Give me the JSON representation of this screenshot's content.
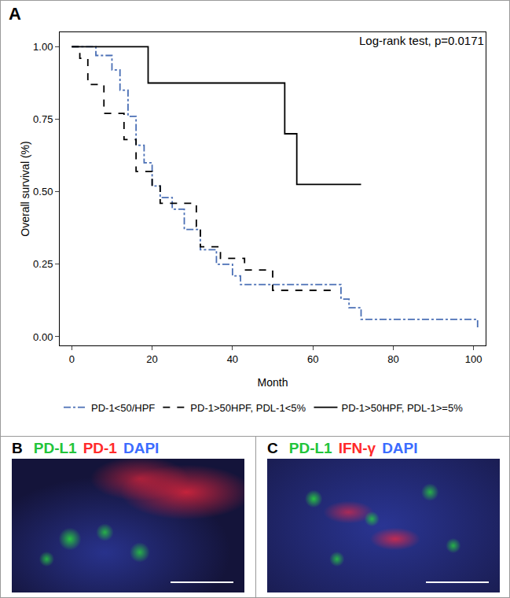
{
  "chart_data": {
    "type": "line",
    "panel_label": "A",
    "annotations": [
      "Log-rank test, p=0.0171"
    ],
    "x_label": "Month",
    "y_label": "Overall survival (%)",
    "xlim": [
      -3,
      103
    ],
    "xticks": [
      0,
      20,
      40,
      60,
      80,
      100
    ],
    "ylim": [
      -0.03,
      1.05
    ],
    "yticks": [
      {
        "value": 0,
        "label": "0.00"
      },
      {
        "value": 0.25,
        "label": "0.25"
      },
      {
        "value": 0.5,
        "label": "0.50"
      },
      {
        "value": 0.75,
        "label": "0.75"
      },
      {
        "value": 1,
        "label": "1.00"
      }
    ],
    "grid": false,
    "legend": "bottom",
    "series": [
      {
        "name": "PD-1<50/HPF",
        "color": "#4a6fb5",
        "line_style": "dashdot",
        "x": [
          0,
          6,
          10,
          12,
          14,
          16,
          18,
          20,
          22,
          25,
          28,
          32,
          36,
          40,
          42,
          50,
          67,
          69,
          72,
          100,
          101
        ],
        "values": [
          1,
          0.97,
          0.92,
          0.85,
          0.76,
          0.66,
          0.6,
          0.52,
          0.48,
          0.44,
          0.37,
          0.3,
          0.25,
          0.21,
          0.18,
          0.18,
          0.13,
          0.1,
          0.06,
          0.06,
          0.03
        ]
      },
      {
        "name": "PD-1>50HPF, PDL-1<5%",
        "color": "#000000",
        "line_style": "dash",
        "x": [
          0,
          2,
          4,
          8,
          13,
          16,
          20,
          22,
          31,
          32,
          37,
          43,
          50,
          66
        ],
        "values": [
          1,
          0.96,
          0.87,
          0.77,
          0.68,
          0.57,
          0.52,
          0.46,
          0.38,
          0.31,
          0.27,
          0.23,
          0.16,
          0.16
        ]
      },
      {
        "name": "PD-1>50HPF, PDL-1>=5%",
        "color": "#000000",
        "line_style": "solid",
        "x": [
          0,
          19,
          53,
          56,
          72
        ],
        "values": [
          1,
          0.875,
          0.7,
          0.525,
          0.525
        ]
      }
    ]
  },
  "panels": [
    {
      "label": "B",
      "stains": [
        {
          "name": "PD-L1",
          "color": "#22c43a"
        },
        {
          "name": "PD-1",
          "color": "#ff2a2a"
        },
        {
          "name": "DAPI",
          "color": "#3b6cff"
        }
      ]
    },
    {
      "label": "C",
      "stains": [
        {
          "name": "PD-L1",
          "color": "#22c43a"
        },
        {
          "name": "IFN-γ",
          "color": "#ff2a2a"
        },
        {
          "name": "DAPI",
          "color": "#3b6cff"
        }
      ]
    }
  ]
}
